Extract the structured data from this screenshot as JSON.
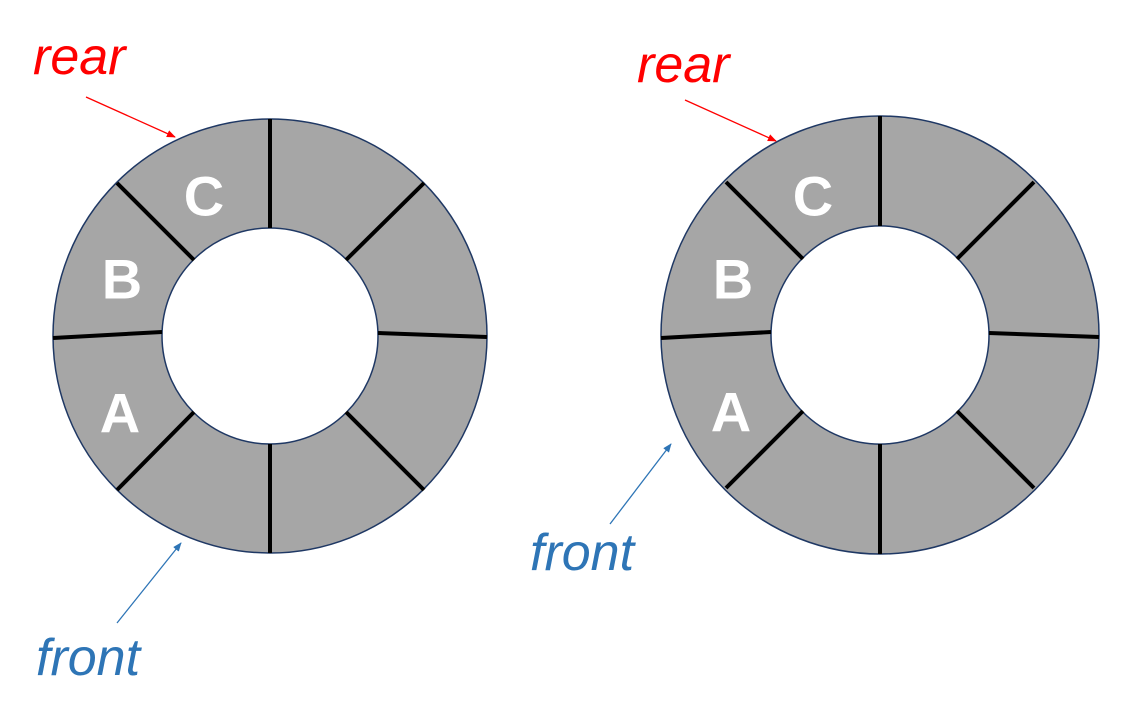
{
  "diagrams": [
    {
      "slots": [
        "A",
        "B",
        "C"
      ],
      "rear_label": "rear",
      "front_label": "front"
    },
    {
      "slots": [
        "A",
        "B",
        "C"
      ],
      "rear_label": "rear",
      "front_label": "front"
    }
  ],
  "colors": {
    "ring_fill": "#a6a6a6",
    "ring_outline": "#1f3864",
    "divider": "#000000",
    "slot_text": "#ffffff",
    "rear": "#ff0000",
    "front": "#2e75b6"
  }
}
